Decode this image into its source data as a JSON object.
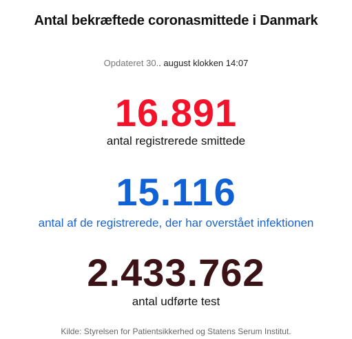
{
  "header": {
    "title": "Antal bekræftede coronasmittede i Danmark"
  },
  "updated": {
    "prefix": "Opdateret",
    "day": "30.",
    "rest": ". august klokken",
    "time": "14:07"
  },
  "stats": [
    {
      "value": "16.891",
      "label": "antal registrerede smittede",
      "color": "#f2132b"
    },
    {
      "value": "15.116",
      "label": "antal af de registrerede, der har overstået infektionen",
      "color": "#1061d4"
    },
    {
      "value": "2.433.762",
      "label": "antal udførte test",
      "color": "#3b1216"
    }
  ],
  "footer": {
    "source": "Kilde: Styrelsen for Patientsikkerhed og Statens Serum Institut."
  }
}
